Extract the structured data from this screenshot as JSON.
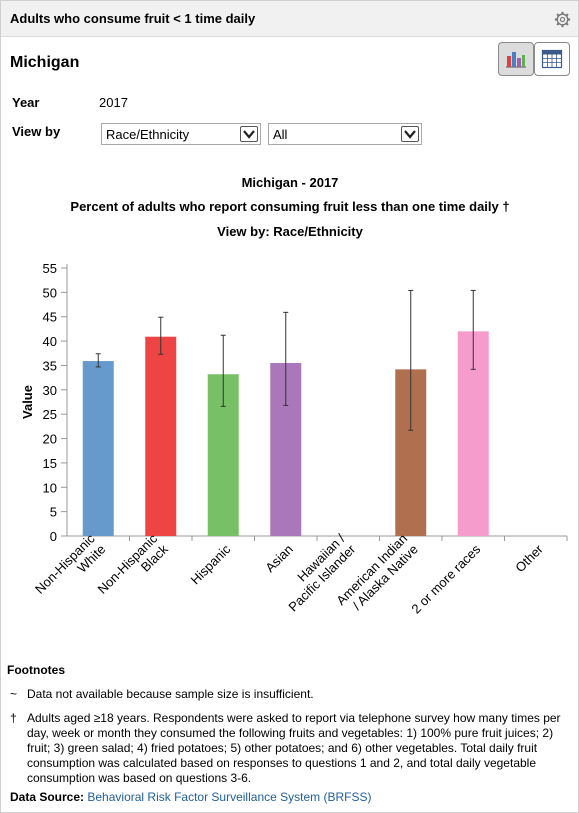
{
  "header": {
    "title": "Adults who consume fruit < 1 time daily"
  },
  "location": "Michigan",
  "filters": {
    "year_label": "Year",
    "year_value": "2017",
    "view_by_label": "View by",
    "view_by_value": "Race/Ethnicity",
    "subgroup_value": "All"
  },
  "chart_data": {
    "type": "bar",
    "title_lines": [
      "Michigan - 2017",
      "Percent of adults who report consuming fruit less than one time daily †",
      "View by: Race/Ethnicity"
    ],
    "ylabel": "Value",
    "xlabel": "",
    "ylim": [
      0,
      55
    ],
    "yticks": [
      0,
      5,
      10,
      15,
      20,
      25,
      30,
      35,
      40,
      45,
      50,
      55
    ],
    "grid": false,
    "categories": [
      {
        "lines": [
          "Non-Hispanic",
          "White"
        ],
        "value": 35.9,
        "low": 34.7,
        "high": 37.4,
        "color": "#6699cc"
      },
      {
        "lines": [
          "Non-Hispanic",
          "Black"
        ],
        "value": 40.9,
        "low": 37.3,
        "high": 44.9,
        "color": "#ee4444"
      },
      {
        "lines": [
          "Hispanic"
        ],
        "value": 33.2,
        "low": 26.6,
        "high": 41.2,
        "color": "#77c066"
      },
      {
        "lines": [
          "Asian"
        ],
        "value": 35.5,
        "low": 26.8,
        "high": 45.9,
        "color": "#aa77bb"
      },
      {
        "lines": [
          "Hawaiian /",
          "Pacific Islander"
        ],
        "value": null,
        "low": null,
        "high": null,
        "color": "#cccccc"
      },
      {
        "lines": [
          "American Indian",
          "/ Alaska Native"
        ],
        "value": 34.2,
        "low": 21.7,
        "high": 50.4,
        "color": "#b07050"
      },
      {
        "lines": [
          "2 or more races"
        ],
        "value": 42.0,
        "low": 34.2,
        "high": 50.4,
        "color": "#f59ccc"
      },
      {
        "lines": [
          "Other"
        ],
        "value": null,
        "low": null,
        "high": null,
        "color": "#cccccc"
      }
    ]
  },
  "footnotes": {
    "title": "Footnotes",
    "items": [
      {
        "symbol": "~",
        "text": "Data not available because sample size is insufficient."
      },
      {
        "symbol": "†",
        "text": "Adults aged ≥18 years. Respondents were asked to report via telephone survey how many times per day, week or month they consumed the following fruits and vegetables: 1) 100% pure fruit juices; 2) fruit; 3) green salad; 4) fried potatoes; 5) other potatoes; and 6) other vegetables. Total daily fruit consumption was calculated based on responses to questions 1 and 2, and total daily vegetable consumption was based on questions 3-6."
      }
    ]
  },
  "data_source": {
    "label": "Data Source:",
    "link_text": "Behavioral Risk Factor Surveillance System (BRFSS)"
  },
  "icons": {
    "settings": "gear-icon",
    "chart_view": "bar-chart-icon",
    "table_view": "table-icon",
    "dropdown": "chevron-down-icon"
  }
}
